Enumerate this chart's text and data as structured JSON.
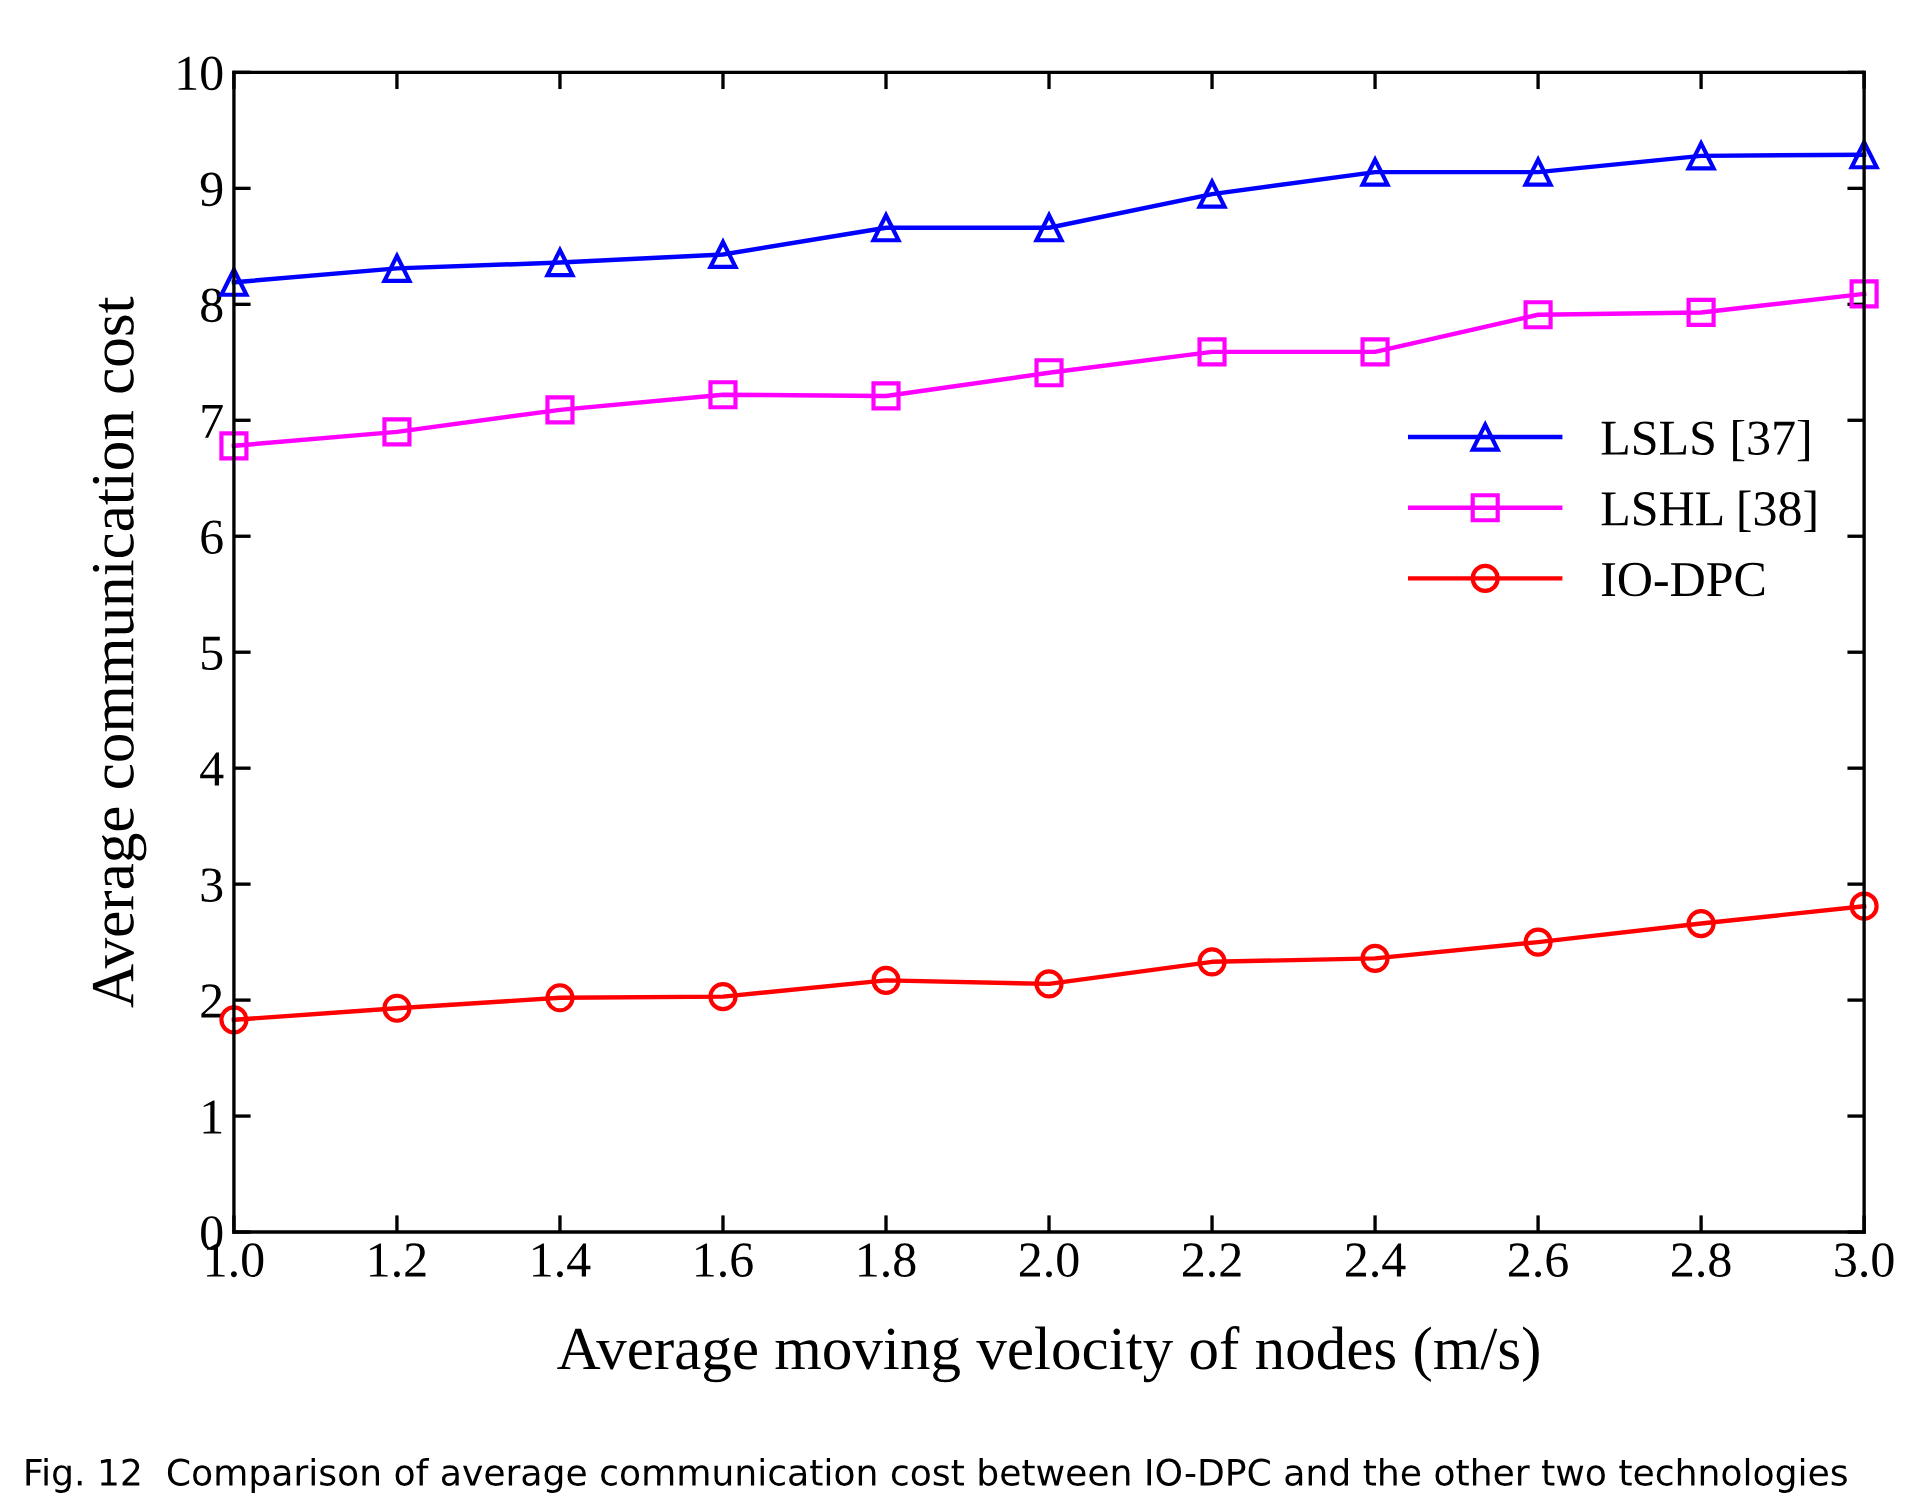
{
  "chart_data": {
    "type": "line",
    "xlabel": "Average moving velocity of nodes (m/s)",
    "ylabel": "Average communication cost",
    "x": [
      1.0,
      1.2,
      1.4,
      1.6,
      1.8,
      2.0,
      2.2,
      2.4,
      2.6,
      2.8,
      3.0
    ],
    "series": [
      {
        "name": "LSLS [37]",
        "color": "#0000ff",
        "marker": "triangle",
        "values": [
          8.19,
          8.31,
          8.36,
          8.43,
          8.66,
          8.66,
          8.95,
          9.14,
          9.14,
          9.28,
          9.29
        ]
      },
      {
        "name": "LSHL [38]",
        "color": "#ff00ff",
        "marker": "square",
        "values": [
          6.78,
          6.9,
          7.09,
          7.22,
          7.21,
          7.41,
          7.59,
          7.59,
          7.91,
          7.93,
          8.09
        ]
      },
      {
        "name": "IO-DPC",
        "color": "#ff0000",
        "marker": "circle",
        "values": [
          1.83,
          1.93,
          2.02,
          2.03,
          2.17,
          2.14,
          2.33,
          2.36,
          2.5,
          2.66,
          2.81
        ]
      }
    ],
    "xlim": [
      1.0,
      3.0
    ],
    "xticks": [
      {
        "value": 1.0,
        "label": "1.0"
      },
      {
        "value": 1.2,
        "label": "1.2"
      },
      {
        "value": 1.4,
        "label": "1.4"
      },
      {
        "value": 1.6,
        "label": "1.6"
      },
      {
        "value": 1.8,
        "label": "1.8"
      },
      {
        "value": 2.0,
        "label": "2.0"
      },
      {
        "value": 2.2,
        "label": "2.2"
      },
      {
        "value": 2.4,
        "label": "2.4"
      },
      {
        "value": 2.6,
        "label": "2.6"
      },
      {
        "value": 2.8,
        "label": "2.8"
      },
      {
        "value": 3.0,
        "label": "3.0"
      }
    ],
    "ylim": [
      0,
      10
    ],
    "yticks": [
      0,
      1,
      2,
      3,
      4,
      5,
      6,
      7,
      8,
      9,
      10
    ],
    "grid": false,
    "legend": "right",
    "line_style": "solid",
    "annotations": [
      "Fig. 12  Comparison of average communication cost between IO-DPC and the other two technologies"
    ]
  }
}
